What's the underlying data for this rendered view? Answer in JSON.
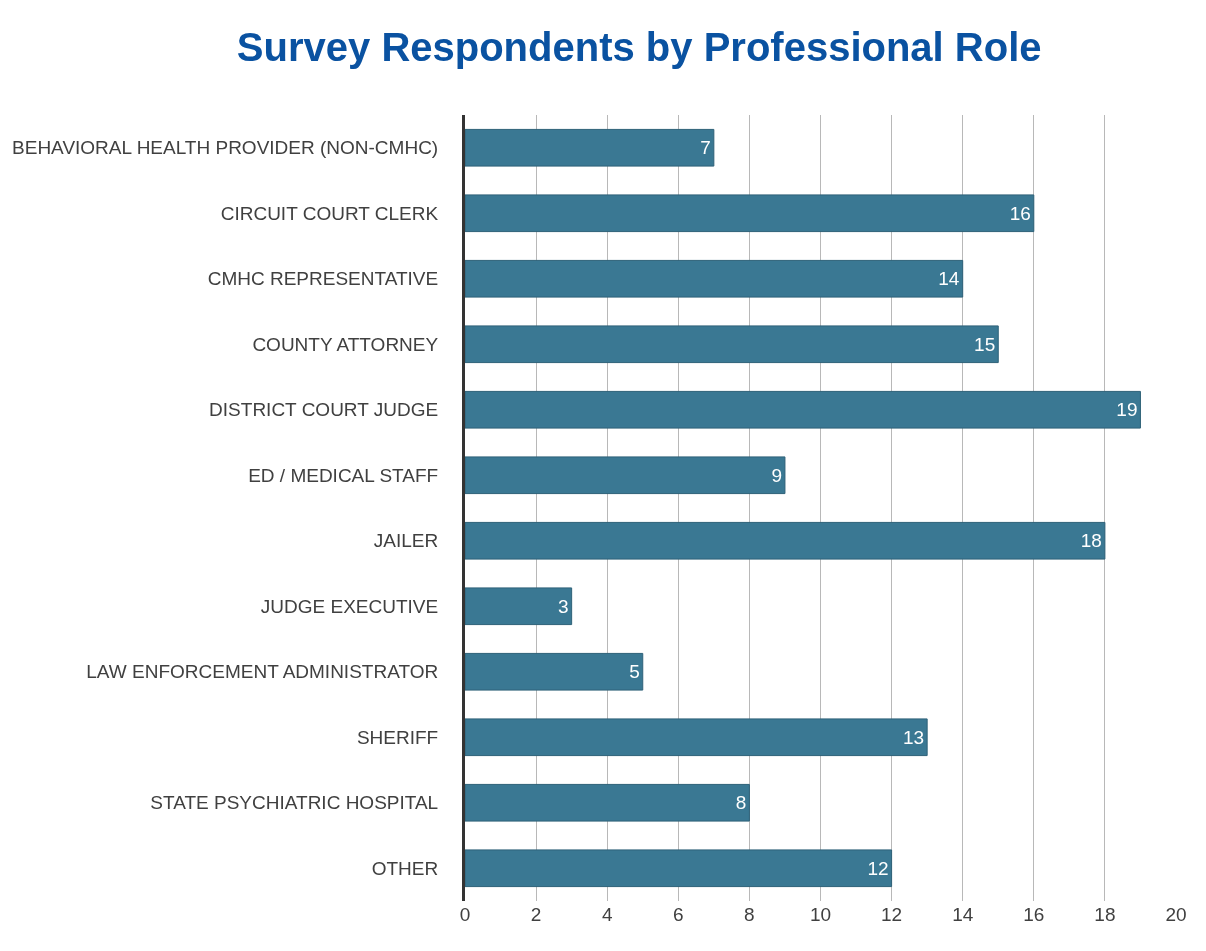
{
  "chart_data": {
    "type": "bar",
    "orientation": "horizontal",
    "title": "Survey Respondents by Professional Role",
    "categories": [
      "BEHAVIORAL HEALTH PROVIDER (NON-CMHC)",
      "CIRCUIT COURT CLERK",
      "CMHC REPRESENTATIVE",
      "COUNTY ATTORNEY",
      "DISTRICT COURT JUDGE",
      "ED / MEDICAL STAFF",
      "JAILER",
      "JUDGE EXECUTIVE",
      "LAW ENFORCEMENT ADMINISTRATOR",
      "SHERIFF",
      "STATE PSYCHIATRIC HOSPITAL",
      "OTHER"
    ],
    "values": [
      7,
      16,
      14,
      15,
      19,
      9,
      18,
      3,
      5,
      13,
      8,
      12
    ],
    "color": "#3a7893",
    "xlim": [
      0,
      20
    ],
    "xticks": [
      0,
      2,
      4,
      6,
      8,
      10,
      12,
      14,
      16,
      18,
      20
    ],
    "grid": "x",
    "data_labels": true,
    "legend": false
  }
}
